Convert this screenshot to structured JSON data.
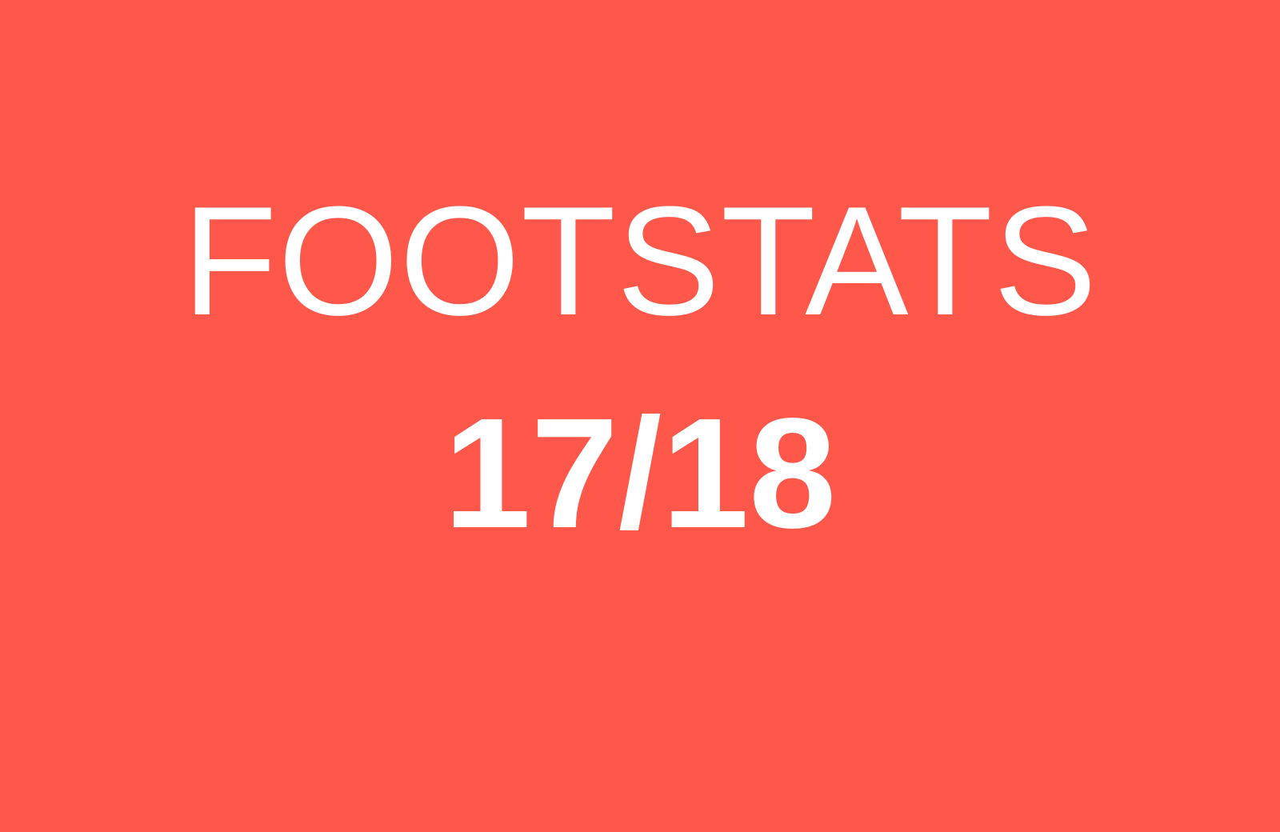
{
  "hero": {
    "title": "FOOTSTATS",
    "season": "17/18"
  },
  "colors": {
    "background": "#FF584B",
    "text": "#FFFFFF"
  }
}
